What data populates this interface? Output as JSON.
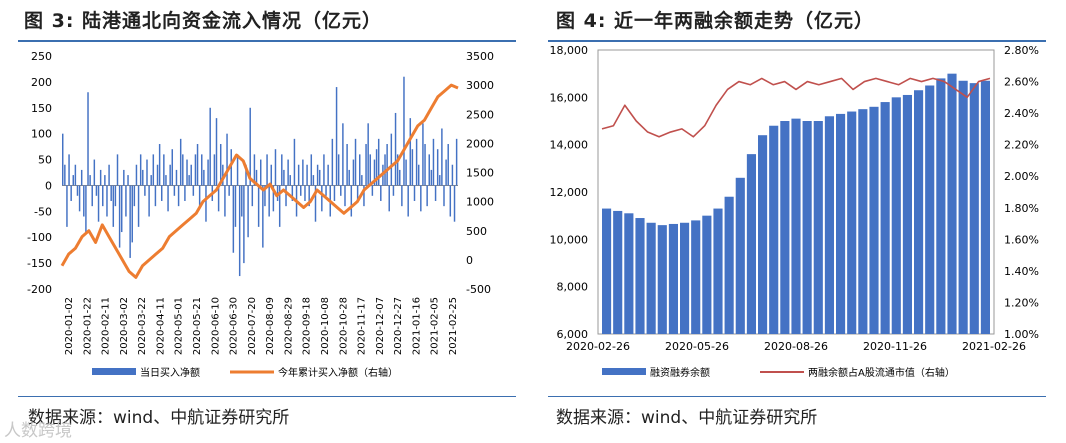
{
  "left": {
    "title": "图 3: 陆港通北向资金流入情况（亿元）",
    "source": "数据来源：wind、中航证券研究所",
    "chart_data": {
      "type": "bar+line",
      "y_left": {
        "lim": [
          -200,
          250
        ],
        "ticks": [
          -200,
          -150,
          -100,
          -50,
          0,
          50,
          100,
          150,
          200,
          250
        ]
      },
      "y_right": {
        "lim": [
          -500,
          3500
        ],
        "ticks": [
          -500,
          0,
          500,
          1000,
          1500,
          2000,
          2500,
          3000,
          3500
        ]
      },
      "x_ticks": [
        "2020-01-02",
        "2020-01-22",
        "2020-02-11",
        "2020-03-02",
        "2020-03-22",
        "2020-04-11",
        "2020-05-01",
        "2020-05-21",
        "2020-06-10",
        "2020-06-30",
        "2020-07-20",
        "2020-08-09",
        "2020-08-29",
        "2020-09-18",
        "2020-10-08",
        "2020-10-28",
        "2020-11-17",
        "2020-12-07",
        "2020-12-27",
        "2021-01-16",
        "2021-02-05",
        "2021-02-25"
      ],
      "series": [
        {
          "name": "当日买入净额",
          "type": "bar",
          "color": "#4472c4",
          "axis": "left",
          "values": [
            100,
            40,
            -80,
            60,
            -30,
            20,
            40,
            -20,
            -50,
            30,
            -60,
            -90,
            180,
            20,
            -40,
            50,
            -20,
            -70,
            30,
            -40,
            20,
            -60,
            40,
            -30,
            -80,
            -40,
            60,
            -120,
            -90,
            30,
            -60,
            20,
            -140,
            -110,
            -40,
            40,
            -80,
            60,
            30,
            -20,
            50,
            -60,
            20,
            60,
            -40,
            40,
            80,
            -30,
            60,
            20,
            -50,
            40,
            70,
            -20,
            30,
            -40,
            90,
            60,
            -30,
            50,
            20,
            40,
            -20,
            60,
            80,
            -40,
            60,
            30,
            -70,
            50,
            150,
            -30,
            60,
            130,
            -50,
            80,
            40,
            -60,
            100,
            -20,
            70,
            -130,
            -80,
            60,
            -175,
            -60,
            -150,
            40,
            -100,
            150,
            -40,
            60,
            30,
            -80,
            50,
            -120,
            -40,
            60,
            -60,
            40,
            -50,
            70,
            -30,
            -80,
            60,
            30,
            -40,
            50,
            20,
            -30,
            90,
            -60,
            40,
            -20,
            50,
            -30,
            40,
            -40,
            60,
            20,
            -70,
            40,
            30,
            -50,
            60,
            -20,
            40,
            -60,
            90,
            -30,
            190,
            60,
            -20,
            120,
            -40,
            80,
            30,
            -60,
            50,
            90,
            -30,
            60,
            20,
            -40,
            80,
            120,
            60,
            -20,
            50,
            70,
            90,
            -30,
            40,
            60,
            80,
            -50,
            100,
            -20,
            140,
            60,
            30,
            -40,
            210,
            50,
            -60,
            130,
            70,
            -30,
            90,
            40,
            -50,
            120,
            80,
            -40,
            60,
            30,
            90,
            -30,
            70,
            20,
            110,
            -40,
            50,
            80,
            -60,
            40,
            -70,
            90
          ]
        },
        {
          "name": "今年累计买入净额（右轴）",
          "type": "line",
          "color": "#ed7d31",
          "axis": "right",
          "values": [
            -100,
            100,
            200,
            400,
            500,
            300,
            600,
            400,
            200,
            0,
            -200,
            -300,
            -100,
            0,
            100,
            200,
            400,
            500,
            600,
            700,
            800,
            1000,
            1100,
            1200,
            1400,
            1600,
            1800,
            1700,
            1400,
            1300,
            1200,
            1300,
            1100,
            1200,
            1100,
            1000,
            900,
            1000,
            1200,
            1100,
            1000,
            900,
            800,
            900,
            1000,
            1200,
            1300,
            1400,
            1500,
            1600,
            1700,
            1900,
            2100,
            2300,
            2400,
            2600,
            2800,
            2900,
            3000,
            2950
          ]
        }
      ]
    }
  },
  "right": {
    "title": "图 4: 近一年两融余额走势（亿元）",
    "source": "数据来源：wind、中航证券研究所",
    "chart_data": {
      "type": "bar+line",
      "y_left": {
        "lim": [
          6000,
          18000
        ],
        "ticks": [
          "6,000",
          "8,000",
          "10,000",
          "12,000",
          "14,000",
          "16,000",
          "18,000"
        ]
      },
      "y_right": {
        "lim": [
          1.0,
          2.8
        ],
        "ticks": [
          "1.00%",
          "1.20%",
          "1.40%",
          "1.60%",
          "1.80%",
          "2.00%",
          "2.20%",
          "2.40%",
          "2.60%",
          "2.80%"
        ]
      },
      "x_ticks": [
        "2020-02-26",
        "2020-05-26",
        "2020-08-26",
        "2020-11-26",
        "2021-02-26"
      ],
      "series": [
        {
          "name": "融资融券余额",
          "type": "bar",
          "color": "#4472c4",
          "axis": "left",
          "values": [
            11300,
            11200,
            11100,
            10900,
            10700,
            10600,
            10650,
            10700,
            10800,
            11000,
            11300,
            11800,
            12600,
            13600,
            14400,
            14800,
            15000,
            15100,
            15000,
            15000,
            15200,
            15300,
            15400,
            15500,
            15600,
            15800,
            16000,
            16100,
            16300,
            16500,
            16800,
            17000,
            16700,
            16600,
            16700
          ]
        },
        {
          "name": "两融余额占A股流通市值（右轴）",
          "type": "line",
          "color": "#c0504d",
          "axis": "right",
          "values": [
            2.3,
            2.32,
            2.45,
            2.35,
            2.28,
            2.25,
            2.28,
            2.3,
            2.25,
            2.32,
            2.45,
            2.55,
            2.6,
            2.58,
            2.62,
            2.58,
            2.6,
            2.55,
            2.6,
            2.58,
            2.6,
            2.62,
            2.55,
            2.6,
            2.62,
            2.6,
            2.58,
            2.62,
            2.6,
            2.62,
            2.6,
            2.55,
            2.5,
            2.6,
            2.62
          ]
        }
      ]
    }
  },
  "watermark": "人数跨境"
}
